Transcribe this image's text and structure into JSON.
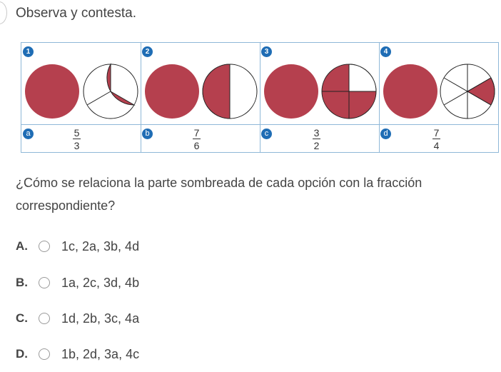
{
  "prompt": "Observa y contesta.",
  "figure": {
    "numbers": [
      "1",
      "2",
      "3",
      "4"
    ],
    "letters": [
      "a",
      "b",
      "c",
      "d"
    ],
    "fractions": [
      {
        "num": "5",
        "den": "3"
      },
      {
        "num": "7",
        "den": "6"
      },
      {
        "num": "3",
        "den": "2"
      },
      {
        "num": "7",
        "den": "4"
      }
    ],
    "shade_color": "#b5404e",
    "groups": [
      {
        "full_circles": 1,
        "parts": 3,
        "shaded_parts": 2
      },
      {
        "full_circles": 1,
        "parts": 2,
        "shaded_parts": 1
      },
      {
        "full_circles": 1,
        "parts": 4,
        "shaded_parts": 3
      },
      {
        "full_circles": 1,
        "parts": 6,
        "shaded_parts": 1
      }
    ]
  },
  "question": "¿Cómo se relaciona la parte sombreada de cada opción con la fracción correspondiente?",
  "options": [
    {
      "letter": "A.",
      "text": "1c, 2a, 3b, 4d"
    },
    {
      "letter": "B.",
      "text": "1a, 2c, 3d, 4b"
    },
    {
      "letter": "C.",
      "text": "1d, 2b, 3c, 4a"
    },
    {
      "letter": "D.",
      "text": "1b, 2d, 3a, 4c"
    }
  ]
}
